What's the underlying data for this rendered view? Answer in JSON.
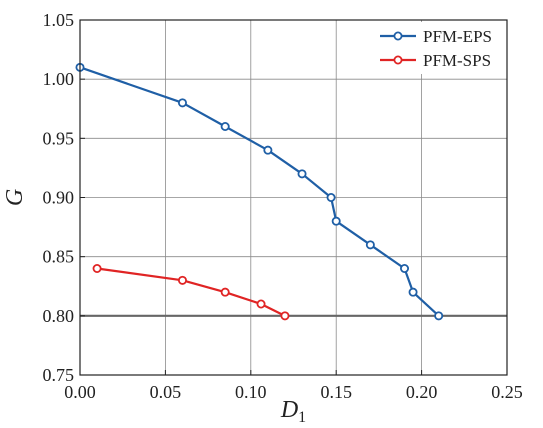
{
  "chart_data": {
    "type": "line",
    "xlabel": "D",
    "xlabel_sub": "1",
    "ylabel": "G",
    "xlim": [
      0.0,
      0.25
    ],
    "ylim": [
      0.75,
      1.05
    ],
    "x_ticks": [
      "0.00",
      "0.05",
      "0.10",
      "0.15",
      "0.20",
      "0.25"
    ],
    "y_ticks": [
      "0.75",
      "0.80",
      "0.85",
      "0.90",
      "0.95",
      "1.00",
      "1.05"
    ],
    "grid": true,
    "legend_position": "top-right",
    "reference_line_y": 0.8,
    "series": [
      {
        "name": "PFM-EPS",
        "color": "#1f5fa6",
        "x": [
          0.0,
          0.06,
          0.085,
          0.11,
          0.13,
          0.147,
          0.15,
          0.17,
          0.19,
          0.195,
          0.21
        ],
        "y": [
          1.01,
          0.98,
          0.96,
          0.94,
          0.92,
          0.9,
          0.88,
          0.86,
          0.84,
          0.82,
          0.8
        ]
      },
      {
        "name": "PFM-SPS",
        "color": "#e02424",
        "x": [
          0.01,
          0.06,
          0.085,
          0.106,
          0.12
        ],
        "y": [
          0.84,
          0.83,
          0.82,
          0.81,
          0.8
        ]
      }
    ]
  }
}
